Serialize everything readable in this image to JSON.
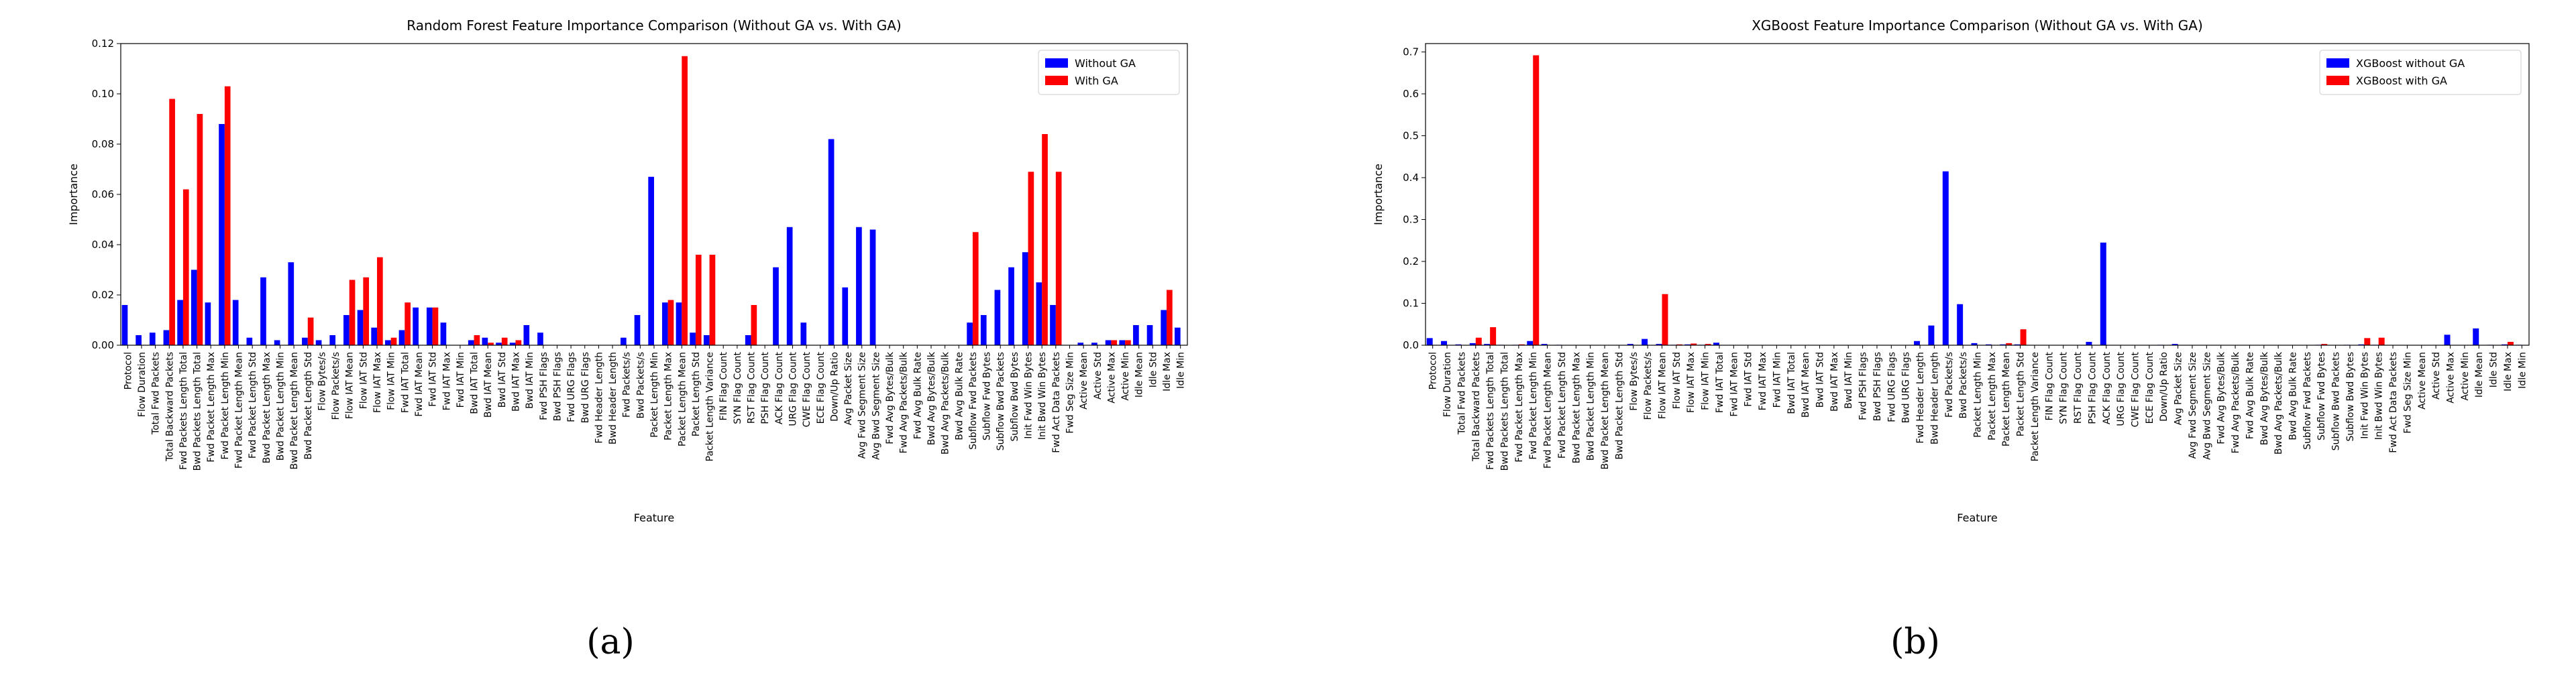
{
  "panel_labels": [
    "(a)",
    "(b)"
  ],
  "chart_data": [
    {
      "type": "bar",
      "title": "Random Forest Feature Importance Comparison (Without GA vs. With GA)",
      "xlabel": "Feature",
      "ylabel": "Importance",
      "ylim": [
        0,
        0.12
      ],
      "yticks": [
        0.0,
        0.02,
        0.04,
        0.06,
        0.08,
        0.1,
        0.12
      ],
      "ytick_labels": [
        "0.00",
        "0.02",
        "0.04",
        "0.06",
        "0.08",
        "0.10",
        "0.12"
      ],
      "legend_position": "top-right",
      "colors": {
        "series_a": "#0000ff",
        "series_b": "#ff0000"
      },
      "categories": [
        "Protocol",
        "Flow Duration",
        "Total Fwd Packets",
        "Total Backward Packets",
        "Fwd Packets Length Total",
        "Bwd Packets Length Total",
        "Fwd Packet Length Max",
        "Fwd Packet Length Min",
        "Fwd Packet Length Mean",
        "Fwd Packet Length Std",
        "Bwd Packet Length Max",
        "Bwd Packet Length Min",
        "Bwd Packet Length Mean",
        "Bwd Packet Length Std",
        "Flow Bytes/s",
        "Flow Packets/s",
        "Flow IAT Mean",
        "Flow IAT Std",
        "Flow IAT Max",
        "Flow IAT Min",
        "Fwd IAT Total",
        "Fwd IAT Mean",
        "Fwd IAT Std",
        "Fwd IAT Max",
        "Fwd IAT Min",
        "Bwd IAT Total",
        "Bwd IAT Mean",
        "Bwd IAT Std",
        "Bwd IAT Max",
        "Bwd IAT Min",
        "Fwd PSH Flags",
        "Bwd PSH Flags",
        "Fwd URG Flags",
        "Bwd URG Flags",
        "Fwd Header Length",
        "Bwd Header Length",
        "Fwd Packets/s",
        "Bwd Packets/s",
        "Packet Length Min",
        "Packet Length Max",
        "Packet Length Mean",
        "Packet Length Std",
        "Packet Length Variance",
        "FIN Flag Count",
        "SYN Flag Count",
        "RST Flag Count",
        "PSH Flag Count",
        "ACK Flag Count",
        "URG Flag Count",
        "CWE Flag Count",
        "ECE Flag Count",
        "Down/Up Ratio",
        "Avg Packet Size",
        "Avg Fwd Segment Size",
        "Avg Bwd Segment Size",
        "Fwd Avg Bytes/Bulk",
        "Fwd Avg Packets/Bulk",
        "Fwd Avg Bulk Rate",
        "Bwd Avg Bytes/Bulk",
        "Bwd Avg Packets/Bulk",
        "Bwd Avg Bulk Rate",
        "Subflow Fwd Packets",
        "Subflow Fwd Bytes",
        "Subflow Bwd Packets",
        "Subflow Bwd Bytes",
        "Init Fwd Win Bytes",
        "Init Bwd Win Bytes",
        "Fwd Act Data Packets",
        "Fwd Seg Size Min",
        "Active Mean",
        "Active Std",
        "Active Max",
        "Active Min",
        "Idle Mean",
        "Idle Std",
        "Idle Max",
        "Idle Min"
      ],
      "series": [
        {
          "name": "Without GA",
          "values": [
            0.016,
            0.004,
            0.005,
            0.006,
            0.018,
            0.03,
            0.017,
            0.088,
            0.018,
            0.003,
            0.027,
            0.002,
            0.033,
            0.003,
            0.002,
            0.004,
            0.012,
            0.014,
            0.007,
            0.002,
            0.006,
            0.015,
            0.015,
            0.009,
            0.0,
            0.002,
            0.003,
            0.001,
            0.001,
            0.008,
            0.005,
            0,
            0,
            0,
            0,
            0,
            0.003,
            0.012,
            0.067,
            0.017,
            0.017,
            0.005,
            0.004,
            0,
            0,
            0.004,
            0,
            0.031,
            0.047,
            0.009,
            0,
            0.082,
            0.023,
            0.047,
            0.046,
            0,
            0,
            0,
            0,
            0,
            0,
            0.009,
            0.012,
            0.022,
            0.031,
            0.037,
            0.025,
            0.016,
            0,
            0.001,
            0.001,
            0.002,
            0.002,
            0.008,
            0.008,
            0.014,
            0.007
          ]
        },
        {
          "name": "With GA",
          "values": [
            0,
            0,
            0,
            0.098,
            0.062,
            0.092,
            0,
            0.103,
            0,
            0,
            0,
            0,
            0,
            0.011,
            0,
            0,
            0.026,
            0.027,
            0.035,
            0.003,
            0.017,
            0,
            0.015,
            0,
            0,
            0.004,
            0.001,
            0.003,
            0.002,
            0,
            0,
            0,
            0,
            0,
            0,
            0,
            0,
            0,
            0,
            0.018,
            0.115,
            0.036,
            0.036,
            0,
            0,
            0.016,
            0,
            0,
            0,
            0,
            0,
            0,
            0,
            0,
            0,
            0,
            0,
            0,
            0,
            0,
            0,
            0.045,
            0,
            0,
            0,
            0.069,
            0.084,
            0.069,
            0,
            0,
            0,
            0.002,
            0.002,
            0,
            0,
            0.022,
            0
          ]
        }
      ]
    },
    {
      "type": "bar",
      "title": "XGBoost Feature Importance Comparison (Without GA vs. With GA)",
      "xlabel": "Feature",
      "ylabel": "Importance",
      "ylim": [
        0,
        0.72
      ],
      "yticks": [
        0.0,
        0.1,
        0.2,
        0.3,
        0.4,
        0.5,
        0.6,
        0.7
      ],
      "ytick_labels": [
        "0.0",
        "0.1",
        "0.2",
        "0.3",
        "0.4",
        "0.5",
        "0.6",
        "0.7"
      ],
      "legend_position": "top-right",
      "colors": {
        "series_a": "#0000ff",
        "series_b": "#ff0000"
      },
      "categories": [
        "Protocol",
        "Flow Duration",
        "Total Fwd Packets",
        "Total Backward Packets",
        "Fwd Packets Length Total",
        "Bwd Packets Length Total",
        "Fwd Packet Length Max",
        "Fwd Packet Length Min",
        "Fwd Packet Length Mean",
        "Fwd Packet Length Std",
        "Bwd Packet Length Max",
        "Bwd Packet Length Min",
        "Bwd Packet Length Mean",
        "Bwd Packet Length Std",
        "Flow Bytes/s",
        "Flow Packets/s",
        "Flow IAT Mean",
        "Flow IAT Std",
        "Flow IAT Max",
        "Flow IAT Min",
        "Fwd IAT Total",
        "Fwd IAT Mean",
        "Fwd IAT Std",
        "Fwd IAT Max",
        "Fwd IAT Min",
        "Bwd IAT Total",
        "Bwd IAT Mean",
        "Bwd IAT Std",
        "Bwd IAT Max",
        "Bwd IAT Min",
        "Fwd PSH Flags",
        "Bwd PSH Flags",
        "Fwd URG Flags",
        "Bwd URG Flags",
        "Fwd Header Length",
        "Bwd Header Length",
        "Fwd Packets/s",
        "Bwd Packets/s",
        "Packet Length Min",
        "Packet Length Max",
        "Packet Length Mean",
        "Packet Length Std",
        "Packet Length Variance",
        "FIN Flag Count",
        "SYN Flag Count",
        "RST Flag Count",
        "PSH Flag Count",
        "ACK Flag Count",
        "URG Flag Count",
        "CWE Flag Count",
        "ECE Flag Count",
        "Down/Up Ratio",
        "Avg Packet Size",
        "Avg Fwd Segment Size",
        "Avg Bwd Segment Size",
        "Fwd Avg Bytes/Bulk",
        "Fwd Avg Packets/Bulk",
        "Fwd Avg Bulk Rate",
        "Bwd Avg Bytes/Bulk",
        "Bwd Avg Packets/Bulk",
        "Bwd Avg Bulk Rate",
        "Subflow Fwd Packets",
        "Subflow Fwd Bytes",
        "Subflow Bwd Packets",
        "Subflow Bwd Bytes",
        "Init Fwd Win Bytes",
        "Init Bwd Win Bytes",
        "Fwd Act Data Packets",
        "Fwd Seg Size Min",
        "Active Mean",
        "Active Std",
        "Active Max",
        "Active Min",
        "Idle Mean",
        "Idle Std",
        "Idle Max",
        "Idle Min"
      ],
      "series": [
        {
          "name": "XGBoost without GA",
          "values": [
            0.017,
            0.01,
            0.002,
            0.005,
            0.003,
            0.001,
            0.001,
            0.01,
            0.003,
            0.001,
            0,
            0,
            0,
            0,
            0.003,
            0.015,
            0.003,
            0.001,
            0.002,
            0.001,
            0.006,
            0,
            0,
            0,
            0,
            0,
            0,
            0,
            0,
            0,
            0,
            0,
            0,
            0,
            0.01,
            0.047,
            0.415,
            0.098,
            0.005,
            0.002,
            0.002,
            0.002,
            0,
            0,
            0,
            0,
            0.008,
            0.245,
            0,
            0,
            0,
            0.001,
            0.003,
            0,
            0,
            0,
            0,
            0,
            0,
            0,
            0,
            0,
            0.001,
            0,
            0.001,
            0.002,
            0.001,
            0,
            0,
            0,
            0,
            0.025,
            0,
            0.04,
            0.001,
            0.002,
            0.001
          ]
        },
        {
          "name": "XGBoost with GA",
          "values": [
            0,
            0,
            0,
            0.018,
            0.043,
            0,
            0.002,
            0.692,
            0,
            0,
            0,
            0,
            0,
            0,
            0,
            0,
            0.122,
            0.002,
            0.004,
            0.003,
            0,
            0,
            0,
            0,
            0,
            0,
            0,
            0,
            0,
            0,
            0,
            0,
            0,
            0,
            0,
            0,
            0,
            0,
            0,
            0,
            0.005,
            0.038,
            0,
            0,
            0,
            0,
            0,
            0,
            0,
            0,
            0,
            0,
            0,
            0,
            0,
            0,
            0,
            0,
            0,
            0,
            0,
            0,
            0.003,
            0,
            0,
            0.017,
            0.018,
            0,
            0,
            0,
            0,
            0,
            0,
            0,
            0,
            0.008,
            0
          ]
        }
      ]
    }
  ]
}
